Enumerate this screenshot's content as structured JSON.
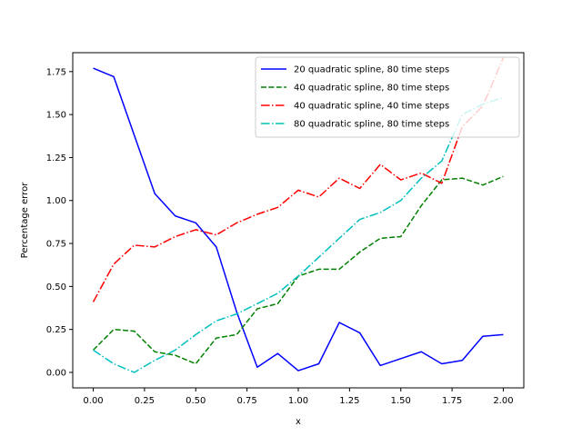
{
  "chart_data": {
    "type": "line",
    "title": "",
    "xlabel": "x",
    "ylabel": "Percentage error",
    "xlim": [
      -0.1,
      2.1
    ],
    "ylim": [
      -0.09,
      1.86
    ],
    "xticks": [
      0.0,
      0.25,
      0.5,
      0.75,
      1.0,
      1.25,
      1.5,
      1.75,
      2.0
    ],
    "xtick_labels": [
      "0.00",
      "0.25",
      "0.50",
      "0.75",
      "1.00",
      "1.25",
      "1.50",
      "1.75",
      "2.00"
    ],
    "yticks": [
      0.0,
      0.25,
      0.5,
      0.75,
      1.0,
      1.25,
      1.5,
      1.75
    ],
    "ytick_labels": [
      "0.00",
      "0.25",
      "0.50",
      "0.75",
      "1.00",
      "1.25",
      "1.50",
      "1.75"
    ],
    "grid": false,
    "legend_position": "top-right",
    "x": [
      0.0,
      0.1,
      0.2,
      0.3,
      0.4,
      0.5,
      0.6,
      0.7,
      0.8,
      0.9,
      1.0,
      1.1,
      1.2,
      1.3,
      1.4,
      1.5,
      1.6,
      1.7,
      1.8,
      1.9,
      2.0
    ],
    "series": [
      {
        "name": "20 quadratic spline, 80 time steps",
        "color": "#0000ff",
        "linestyle": "solid",
        "values": [
          1.77,
          1.72,
          1.38,
          1.04,
          0.91,
          0.87,
          0.73,
          0.35,
          0.03,
          0.11,
          0.01,
          0.05,
          0.29,
          0.23,
          0.04,
          0.08,
          0.12,
          0.05,
          0.07,
          0.21,
          0.22
        ]
      },
      {
        "name": "40 quadratic spline, 80 time steps",
        "color": "#008000",
        "linestyle": "dashed",
        "values": [
          0.13,
          0.25,
          0.24,
          0.12,
          0.1,
          0.05,
          0.2,
          0.22,
          0.37,
          0.4,
          0.56,
          0.6,
          0.6,
          0.7,
          0.78,
          0.79,
          0.97,
          1.12,
          1.13,
          1.09,
          1.14
        ]
      },
      {
        "name": "40 quadratic spline, 40 time steps",
        "color": "#ff0000",
        "linestyle": "dashdot",
        "values": [
          0.41,
          0.63,
          0.74,
          0.73,
          0.79,
          0.83,
          0.8,
          0.87,
          0.92,
          0.96,
          1.06,
          1.02,
          1.13,
          1.07,
          1.21,
          1.12,
          1.16,
          1.1,
          1.43,
          1.55,
          1.83
        ]
      },
      {
        "name": "80 quadratic spline, 80 time steps",
        "color": "#00bfbf",
        "linestyle": "dashdot",
        "values": [
          0.13,
          0.05,
          0.0,
          0.07,
          0.13,
          0.22,
          0.3,
          0.34,
          0.4,
          0.46,
          0.56,
          0.67,
          0.78,
          0.89,
          0.93,
          1.0,
          1.13,
          1.23,
          1.5,
          1.56,
          1.6
        ]
      }
    ]
  }
}
